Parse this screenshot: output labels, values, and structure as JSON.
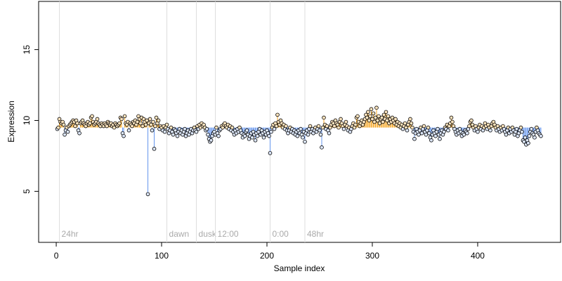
{
  "chart_data": {
    "type": "lollipop",
    "xlabel": "Sample index",
    "ylabel": "Expression",
    "xlim": [
      -16.7,
      478.7
    ],
    "ylim": [
      1.4,
      18.4
    ],
    "xticks": [
      0,
      100,
      200,
      300,
      400
    ],
    "yticks": [
      5,
      10,
      15
    ],
    "baseline": 9.5,
    "above_color": "#f5a623",
    "below_color": "#6495ed",
    "point_color": "#000000",
    "markers": [
      {
        "x": 3,
        "label": "24hr"
      },
      {
        "x": 105,
        "label": "dawn"
      },
      {
        "x": 133,
        "label": "dusk"
      },
      {
        "x": 151,
        "label": "12:00"
      },
      {
        "x": 203,
        "label": "0:00"
      },
      {
        "x": 236,
        "label": "48hr"
      }
    ],
    "x": [
      1,
      2,
      3,
      4,
      5,
      6,
      7,
      8,
      9,
      10,
      11,
      12,
      13,
      14,
      15,
      16,
      17,
      18,
      19,
      20,
      21,
      22,
      23,
      24,
      25,
      26,
      27,
      28,
      29,
      30,
      31,
      32,
      33,
      34,
      35,
      36,
      37,
      38,
      39,
      40,
      41,
      42,
      43,
      44,
      45,
      46,
      47,
      48,
      49,
      50,
      51,
      52,
      53,
      54,
      55,
      56,
      57,
      58,
      59,
      60,
      61,
      62,
      63,
      64,
      65,
      66,
      67,
      68,
      69,
      70,
      71,
      72,
      73,
      74,
      75,
      76,
      77,
      78,
      79,
      80,
      81,
      82,
      83,
      84,
      85,
      86,
      87,
      88,
      89,
      90,
      91,
      92,
      93,
      94,
      95,
      96,
      97,
      98,
      99,
      100,
      101,
      102,
      103,
      104,
      105,
      106,
      107,
      108,
      109,
      110,
      111,
      112,
      113,
      114,
      115,
      116,
      117,
      118,
      119,
      120,
      121,
      122,
      123,
      124,
      125,
      126,
      127,
      128,
      129,
      130,
      131,
      132,
      133,
      134,
      135,
      136,
      137,
      138,
      139,
      140,
      141,
      142,
      143,
      144,
      145,
      146,
      147,
      148,
      149,
      150,
      151,
      152,
      153,
      154,
      155,
      156,
      157,
      158,
      159,
      160,
      161,
      162,
      163,
      164,
      165,
      166,
      167,
      168,
      169,
      170,
      171,
      172,
      173,
      174,
      175,
      176,
      177,
      178,
      179,
      180,
      181,
      182,
      183,
      184,
      185,
      186,
      187,
      188,
      189,
      190,
      191,
      192,
      193,
      194,
      195,
      196,
      197,
      198,
      199,
      200,
      201,
      202,
      203,
      204,
      205,
      206,
      207,
      208,
      209,
      210,
      211,
      212,
      213,
      214,
      215,
      216,
      217,
      218,
      219,
      220,
      221,
      222,
      223,
      224,
      225,
      226,
      227,
      228,
      229,
      230,
      231,
      232,
      233,
      234,
      235,
      236,
      237,
      238,
      239,
      240,
      241,
      242,
      243,
      244,
      245,
      246,
      247,
      248,
      249,
      250,
      251,
      252,
      253,
      254,
      255,
      256,
      257,
      258,
      259,
      260,
      261,
      262,
      263,
      264,
      265,
      266,
      267,
      268,
      269,
      270,
      271,
      272,
      273,
      274,
      275,
      276,
      277,
      278,
      279,
      280,
      281,
      282,
      283,
      284,
      285,
      286,
      287,
      288,
      289,
      290,
      291,
      292,
      293,
      294,
      295,
      296,
      297,
      298,
      299,
      300,
      301,
      302,
      303,
      304,
      305,
      306,
      307,
      308,
      309,
      310,
      311,
      312,
      313,
      314,
      315,
      316,
      317,
      318,
      319,
      320,
      321,
      322,
      323,
      324,
      325,
      326,
      327,
      328,
      329,
      330,
      331,
      332,
      333,
      334,
      335,
      336,
      337,
      338,
      339,
      340,
      341,
      342,
      343,
      344,
      345,
      346,
      347,
      348,
      349,
      350,
      351,
      352,
      353,
      354,
      355,
      356,
      357,
      358,
      359,
      360,
      361,
      362,
      363,
      364,
      365,
      366,
      367,
      368,
      369,
      370,
      371,
      372,
      373,
      374,
      375,
      376,
      377,
      378,
      379,
      380,
      381,
      382,
      383,
      384,
      385,
      386,
      387,
      388,
      389,
      390,
      391,
      392,
      393,
      394,
      395,
      396,
      397,
      398,
      399,
      400,
      401,
      402,
      403,
      404,
      405,
      406,
      407,
      408,
      409,
      410,
      411,
      412,
      413,
      414,
      415,
      416,
      417,
      418,
      419,
      420,
      421,
      422,
      423,
      424,
      425,
      426,
      427,
      428,
      429,
      430,
      431,
      432,
      433,
      434,
      435,
      436,
      437,
      438,
      439,
      440,
      441,
      442,
      443,
      444,
      445,
      446,
      447,
      448,
      449,
      450,
      451,
      452,
      453,
      454,
      455,
      456,
      457,
      458,
      459,
      460
    ],
    "values": [
      9.4,
      9.5,
      10.1,
      9.9,
      9.8,
      9.9,
      9.7,
      9.0,
      9.3,
      9.5,
      9.2,
      9.6,
      9.7,
      9.8,
      9.9,
      10.0,
      9.9,
      9.6,
      10.0,
      9.8,
      9.3,
      9.1,
      9.8,
      9.9,
      10.0,
      9.8,
      9.7,
      9.6,
      9.8,
      9.9,
      9.7,
      9.8,
      10.2,
      10.3,
      9.9,
      9.7,
      9.8,
      9.9,
      10.1,
      9.8,
      9.7,
      9.6,
      9.8,
      9.7,
      9.6,
      9.8,
      9.7,
      9.6,
      9.9,
      9.8,
      9.7,
      9.8,
      9.6,
      9.7,
      9.5,
      9.8,
      9.7,
      9.6,
      9.7,
      9.8,
      10.2,
      10.1,
      9.1,
      8.9,
      10.3,
      9.8,
      9.7,
      9.9,
      9.3,
      9.8,
      9.7,
      9.6,
      9.9,
      9.8,
      10.0,
      9.7,
      9.9,
      10.3,
      10.1,
      9.8,
      10.2,
      9.6,
      10.1,
      9.9,
      9.7,
      10.0,
      4.8,
      9.8,
      10.1,
      9.7,
      9.3,
      9.9,
      8.0,
      9.6,
      10.2,
      9.8,
      10.0,
      9.4,
      9.6,
      9.5,
      9.3,
      9.6,
      9.2,
      9.5,
      9.7,
      9.4,
      9.1,
      9.3,
      9.5,
      9.2,
      9.0,
      9.4,
      9.3,
      9.1,
      8.9,
      9.2,
      9.4,
      9.1,
      9.3,
      9.0,
      9.2,
      9.4,
      8.9,
      9.1,
      9.3,
      9.0,
      9.2,
      9.4,
      9.1,
      9.3,
      9.5,
      9.3,
      9.2,
      9.6,
      9.4,
      9.7,
      9.5,
      9.8,
      9.6,
      9.7,
      9.5,
      9.3,
      9.4,
      9.0,
      8.7,
      8.5,
      8.6,
      8.9,
      9.1,
      9.2,
      9.0,
      9.5,
      9.1,
      8.9,
      9.3,
      9.4,
      9.6,
      9.5,
      9.7,
      9.8,
      9.6,
      9.5,
      9.7,
      9.4,
      9.6,
      9.3,
      9.5,
      9.2,
      9.0,
      9.3,
      9.1,
      9.4,
      9.2,
      9.5,
      9.3,
      9.1,
      8.8,
      9.0,
      8.9,
      9.2,
      9.3,
      9.0,
      8.7,
      8.9,
      9.1,
      8.8,
      9.2,
      9.0,
      8.6,
      9.1,
      8.9,
      9.2,
      9.4,
      9.0,
      9.3,
      9.1,
      8.8,
      9.2,
      9.0,
      9.3,
      9.1,
      8.9,
      7.7,
      9.2,
      9.5,
      9.7,
      9.4,
      9.8,
      9.6,
      10.4,
      9.9,
      9.7,
      10.0,
      9.8,
      9.5,
      9.7,
      9.4,
      9.6,
      9.3,
      9.1,
      9.3,
      9.5,
      9.2,
      9.4,
      9.1,
      9.3,
      9.0,
      9.2,
      8.9,
      9.3,
      9.1,
      9.4,
      9.0,
      8.8,
      9.2,
      8.5,
      9.1,
      9.3,
      9.0,
      9.4,
      9.6,
      9.2,
      9.4,
      9.1,
      9.3,
      9.5,
      9.2,
      9.4,
      9.6,
      9.3,
      9.0,
      8.1,
      9.5,
      10.2,
      9.7,
      9.4,
      9.6,
      9.3,
      9.1,
      9.5,
      9.7,
      9.9,
      9.8,
      9.6,
      10.0,
      9.8,
      9.7,
      9.5,
      9.9,
      10.1,
      9.8,
      9.6,
      9.4,
      9.7,
      9.9,
      9.6,
      9.3,
      9.5,
      9.2,
      9.4,
      9.6,
      9.8,
      9.5,
      9.7,
      10.2,
      10.3,
      9.9,
      9.6,
      9.8,
      10.0,
      9.7,
      9.9,
      10.1,
      10.4,
      10.2,
      10.6,
      10.0,
      10.3,
      10.8,
      10.1,
      10.5,
      9.9,
      10.2,
      10.9,
      10.0,
      10.3,
      9.8,
      10.1,
      10.2,
      9.9,
      10.4,
      10.1,
      10.6,
      10.0,
      10.3,
      9.8,
      10.1,
      9.9,
      10.2,
      10.0,
      9.8,
      10.1,
      9.7,
      9.9,
      9.6,
      9.8,
      9.5,
      9.7,
      9.4,
      9.6,
      9.8,
      9.5,
      9.3,
      9.7,
      9.9,
      10.1,
      9.8,
      9.5,
      9.2,
      8.7,
      9.1,
      9.4,
      9.2,
      9.0,
      9.3,
      9.5,
      9.1,
      9.4,
      9.6,
      9.2,
      9.0,
      9.3,
      9.5,
      9.1,
      8.8,
      8.6,
      9.0,
      9.3,
      9.1,
      8.9,
      9.2,
      9.4,
      9.0,
      8.7,
      9.1,
      9.3,
      9.0,
      9.2,
      9.5,
      9.4,
      9.7,
      9.3,
      9.6,
      9.8,
      10.2,
      9.9,
      9.6,
      9.4,
      9.2,
      9.0,
      9.3,
      9.1,
      9.4,
      9.2,
      8.9,
      9.1,
      9.0,
      9.3,
      9.2,
      9.1,
      9.4,
      9.6,
      9.9,
      10.0,
      9.7,
      9.5,
      9.3,
      9.6,
      9.4,
      9.2,
      9.5,
      9.7,
      9.4,
      9.6,
      9.3,
      9.5,
      9.8,
      9.6,
      9.4,
      9.7,
      9.5,
      9.3,
      9.6,
      9.8,
      9.9,
      9.7,
      9.5,
      9.3,
      9.6,
      9.4,
      9.2,
      9.5,
      9.3,
      9.6,
      9.4,
      9.2,
      9.0,
      9.3,
      9.5,
      9.1,
      9.4,
      9.2,
      9.5,
      9.3,
      9.0,
      9.2,
      9.4,
      8.9,
      9.1,
      9.3,
      9.5,
      9.2,
      8.6,
      8.5,
      8.8,
      8.3,
      8.6,
      8.4,
      8.9,
      9.2,
      9.4,
      9.1,
      9.0,
      8.8,
      9.2,
      9.5,
      9.3,
      9.1,
      9.0,
      8.9
    ]
  }
}
